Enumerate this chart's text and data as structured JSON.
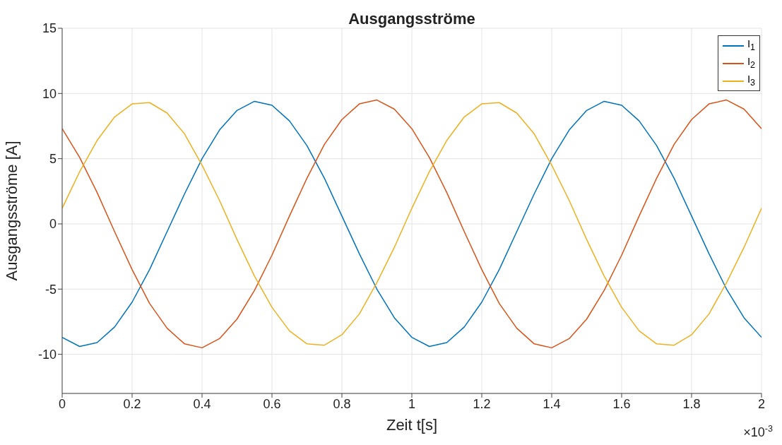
{
  "chart_data": {
    "type": "line",
    "title": "Ausgangsströme",
    "xlabel": "Zeit t[s]",
    "ylabel": "Ausgangsströme [A]",
    "annotations": [
      "×10$^{-3}$"
    ],
    "x": [
      0,
      0.05,
      0.1,
      0.15,
      0.2,
      0.25,
      0.3,
      0.35,
      0.4,
      0.45,
      0.5,
      0.55,
      0.6,
      0.65,
      0.7,
      0.75,
      0.8,
      0.85,
      0.9,
      0.95,
      1,
      1.05,
      1.1,
      1.15,
      1.2,
      1.25,
      1.3,
      1.35,
      1.4,
      1.45,
      1.5,
      1.55,
      1.6,
      1.65,
      1.7,
      1.75,
      1.8,
      1.85,
      1.9,
      1.95,
      2
    ],
    "series": [
      {
        "name": "I$_{1}$",
        "color": "#0072bd",
        "values": [
          -8.7,
          -9.4,
          -9.1,
          -7.9,
          -6.0,
          -3.5,
          -0.6,
          2.3,
          5.0,
          7.2,
          8.7,
          9.4,
          9.1,
          7.9,
          6.0,
          3.5,
          0.6,
          -2.3,
          -5.0,
          -7.2,
          -8.7,
          -9.4,
          -9.1,
          -7.9,
          -6.0,
          -3.5,
          -0.6,
          2.3,
          5.0,
          7.2,
          8.7,
          9.4,
          9.1,
          7.9,
          6.0,
          3.5,
          0.6,
          -2.3,
          -5.0,
          -7.2,
          -8.7
        ]
      },
      {
        "name": "I$_{2}$",
        "color": "#d95319",
        "values": [
          7.3,
          5.1,
          2.4,
          -0.6,
          -3.5,
          -6.1,
          -8.0,
          -9.2,
          -9.5,
          -8.8,
          -7.3,
          -5.1,
          -2.4,
          0.6,
          3.5,
          6.1,
          8.0,
          9.2,
          9.5,
          8.8,
          7.3,
          5.1,
          2.4,
          -0.6,
          -3.5,
          -6.1,
          -8.0,
          -9.2,
          -9.5,
          -8.8,
          -7.3,
          -5.1,
          -2.4,
          0.6,
          3.5,
          6.1,
          8.0,
          9.2,
          9.5,
          8.8,
          7.3
        ]
      },
      {
        "name": "I$_{3}$",
        "color": "#edb120",
        "values": [
          1.2,
          4.0,
          6.4,
          8.2,
          9.2,
          9.3,
          8.5,
          6.9,
          4.5,
          1.8,
          -1.2,
          -4.0,
          -6.4,
          -8.2,
          -9.2,
          -9.3,
          -8.5,
          -6.9,
          -4.5,
          -1.8,
          1.2,
          4.0,
          6.4,
          8.2,
          9.2,
          9.3,
          8.5,
          6.9,
          4.5,
          1.8,
          -1.2,
          -4.0,
          -6.4,
          -8.2,
          -9.2,
          -9.3,
          -8.5,
          -6.9,
          -4.5,
          -1.8,
          1.2
        ]
      }
    ],
    "xlim": [
      0,
      2
    ],
    "xticks": [
      0,
      0.2,
      0.4,
      0.6,
      0.8,
      1,
      1.2,
      1.4,
      1.6,
      1.8,
      2
    ],
    "ylim": [
      -13,
      15
    ],
    "yticks": [
      -10,
      -5,
      0,
      5,
      10,
      15
    ],
    "grid": true,
    "legend": "top right",
    "marker": "none",
    "line_style": "solid"
  }
}
